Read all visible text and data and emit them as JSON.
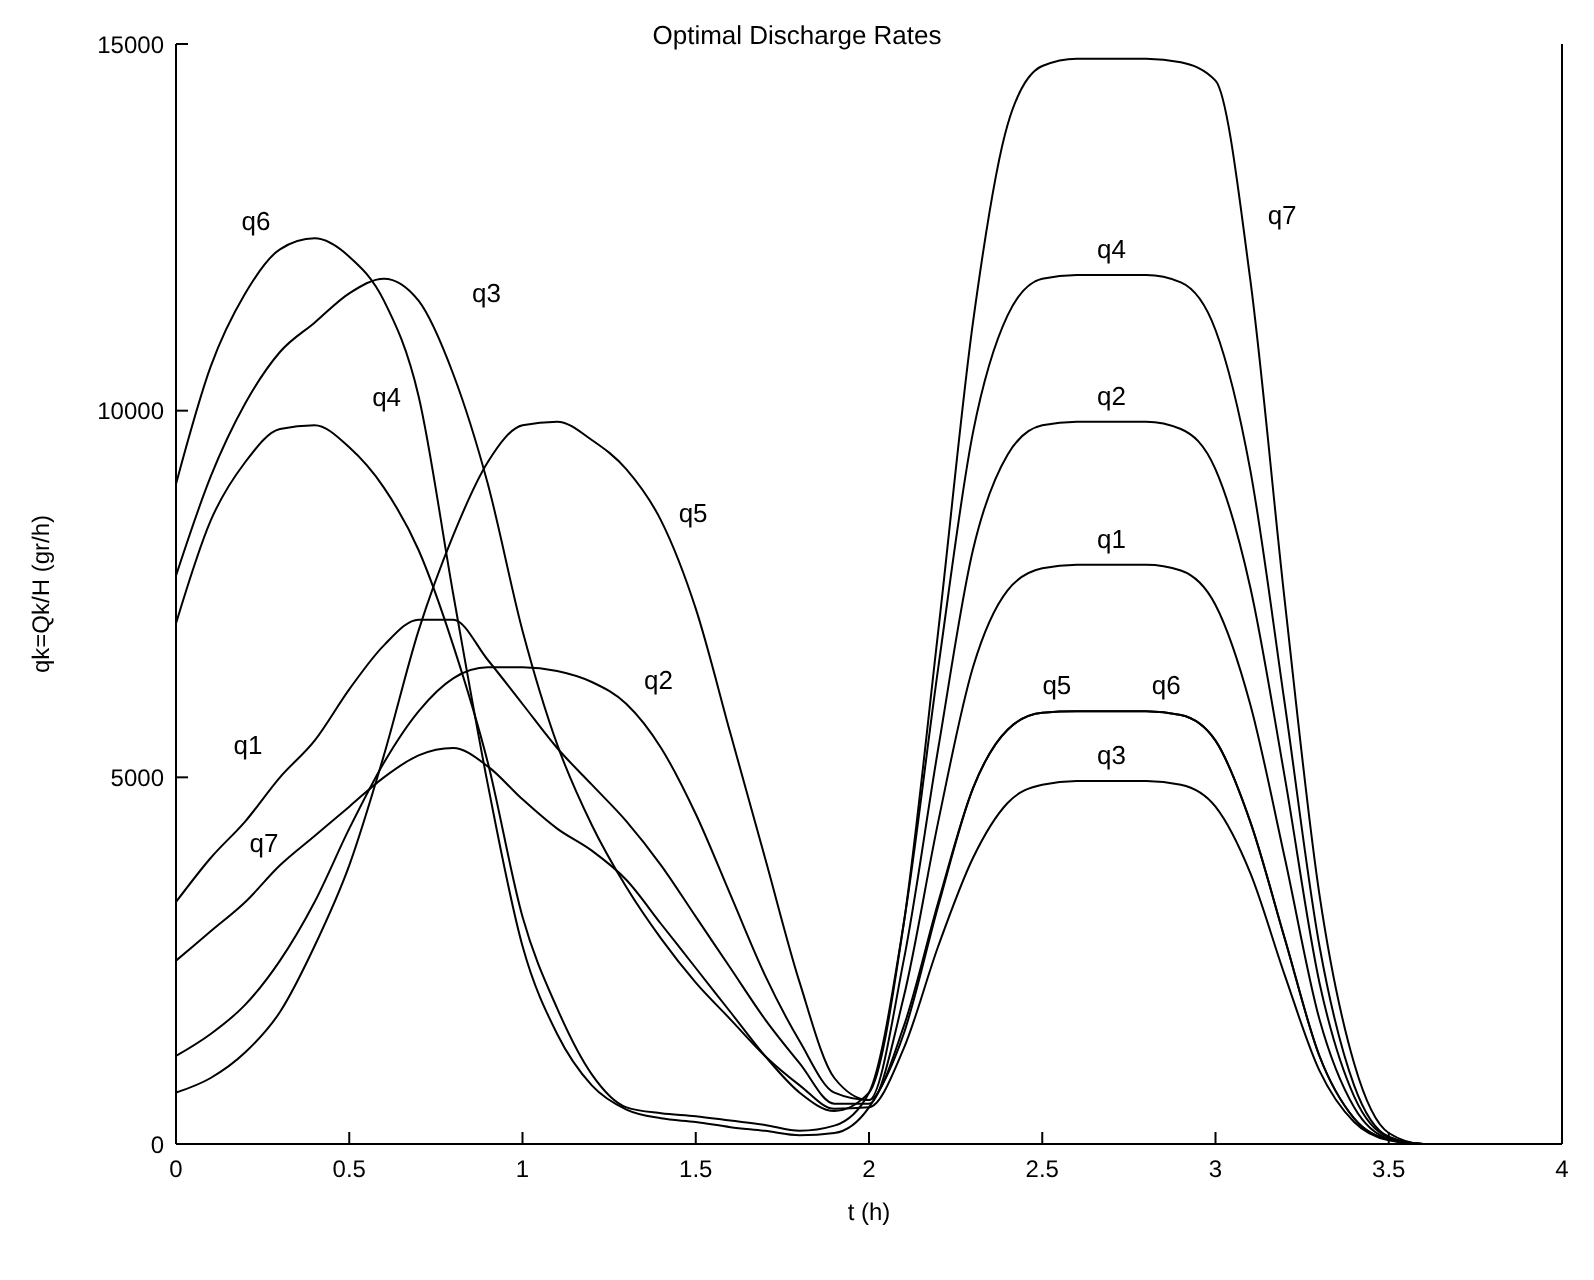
{
  "chart_data": {
    "type": "line",
    "title": "Optimal Discharge Rates",
    "xlabel": "t  (h)",
    "ylabel": "qk=Qk/H  (gr/h)",
    "x": [
      0,
      0.1,
      0.2,
      0.3,
      0.4,
      0.5,
      0.6,
      0.7,
      0.8,
      0.9,
      1.0,
      1.1,
      1.2,
      1.3,
      1.4,
      1.5,
      1.6,
      1.7,
      1.8,
      1.9,
      2.0,
      2.1,
      2.2,
      2.3,
      2.4,
      2.5,
      2.6,
      2.7,
      2.8,
      2.9,
      3.0,
      3.1,
      3.2,
      3.3,
      3.4,
      3.5,
      3.6,
      3.7,
      3.85
    ],
    "series": [
      {
        "name": "q1",
        "color": "#000000",
        "values": [
          3300,
          3900,
          4400,
          5000,
          5500,
          6200,
          6800,
          7150,
          7150,
          6600,
          6000,
          5400,
          4900,
          4400,
          3800,
          3100,
          2400,
          1700,
          1100,
          550,
          550,
          2000,
          4400,
          6500,
          7550,
          7850,
          7900,
          7900,
          7900,
          7820,
          7350,
          6000,
          3900,
          1700,
          500,
          70,
          0,
          0,
          0
        ]
      },
      {
        "name": "q2",
        "color": "#000000",
        "values": [
          1200,
          1500,
          1900,
          2500,
          3300,
          4300,
          5200,
          5900,
          6350,
          6500,
          6500,
          6450,
          6300,
          6000,
          5400,
          4500,
          3400,
          2300,
          1400,
          700,
          600,
          2500,
          5400,
          8100,
          9400,
          9800,
          9850,
          9850,
          9850,
          9750,
          9200,
          7600,
          5000,
          2200,
          650,
          90,
          0,
          0,
          0
        ]
      },
      {
        "name": "q3",
        "color": "#000000",
        "values": [
          7750,
          9100,
          10100,
          10800,
          11200,
          11600,
          11800,
          11500,
          10500,
          9000,
          7000,
          5450,
          4350,
          3500,
          2800,
          2200,
          1700,
          1200,
          800,
          480,
          500,
          1300,
          2700,
          3900,
          4650,
          4900,
          4950,
          4950,
          4950,
          4900,
          4600,
          3700,
          2300,
          1000,
          300,
          50,
          0,
          0,
          0
        ]
      },
      {
        "name": "q4",
        "color": "#000000",
        "values": [
          7100,
          8500,
          9300,
          9750,
          9800,
          9500,
          8950,
          8100,
          6800,
          5200,
          3100,
          1850,
          950,
          500,
          420,
          380,
          320,
          260,
          180,
          250,
          700,
          3000,
          6500,
          9700,
          11300,
          11800,
          11850,
          11850,
          11850,
          11750,
          11100,
          9200,
          6000,
          2700,
          800,
          100,
          0,
          0,
          0
        ]
      },
      {
        "name": "q5",
        "color": "#000000",
        "values": [
          700,
          900,
          1250,
          1800,
          2700,
          3800,
          5300,
          7000,
          8300,
          9300,
          9800,
          9850,
          9600,
          9200,
          8500,
          7300,
          5600,
          3900,
          2200,
          900,
          600,
          1600,
          3300,
          4850,
          5650,
          5880,
          5900,
          5900,
          5900,
          5850,
          5500,
          4400,
          2800,
          1200,
          350,
          60,
          0,
          0,
          0
        ]
      },
      {
        "name": "q6",
        "color": "#000000",
        "values": [
          9000,
          10600,
          11600,
          12200,
          12350,
          12100,
          11500,
          10200,
          7500,
          4900,
          2700,
          1500,
          800,
          470,
          350,
          300,
          230,
          180,
          120,
          150,
          500,
          1500,
          3250,
          4850,
          5650,
          5880,
          5900,
          5900,
          5900,
          5850,
          5500,
          4400,
          2800,
          1200,
          350,
          60,
          0,
          0,
          0
        ]
      },
      {
        "name": "q7",
        "color": "#000000",
        "values": [
          2500,
          2900,
          3300,
          3800,
          4200,
          4600,
          5000,
          5300,
          5400,
          5150,
          4700,
          4300,
          4000,
          3600,
          3000,
          2400,
          1800,
          1200,
          700,
          450,
          700,
          3000,
          7000,
          11200,
          13900,
          14700,
          14800,
          14800,
          14800,
          14750,
          14500,
          11800,
          7400,
          3400,
          1100,
          150,
          0,
          0,
          0
        ]
      }
    ],
    "xlim": [
      0,
      4
    ],
    "xticks": [
      0,
      0.5,
      1,
      1.5,
      2,
      2.5,
      3,
      3.5,
      4
    ],
    "ylim": [
      0,
      15000
    ],
    "yticks": [
      0,
      5000,
      10000,
      15000
    ],
    "grid": false,
    "legend": false,
    "marker": "none",
    "line_style": "solid"
  }
}
